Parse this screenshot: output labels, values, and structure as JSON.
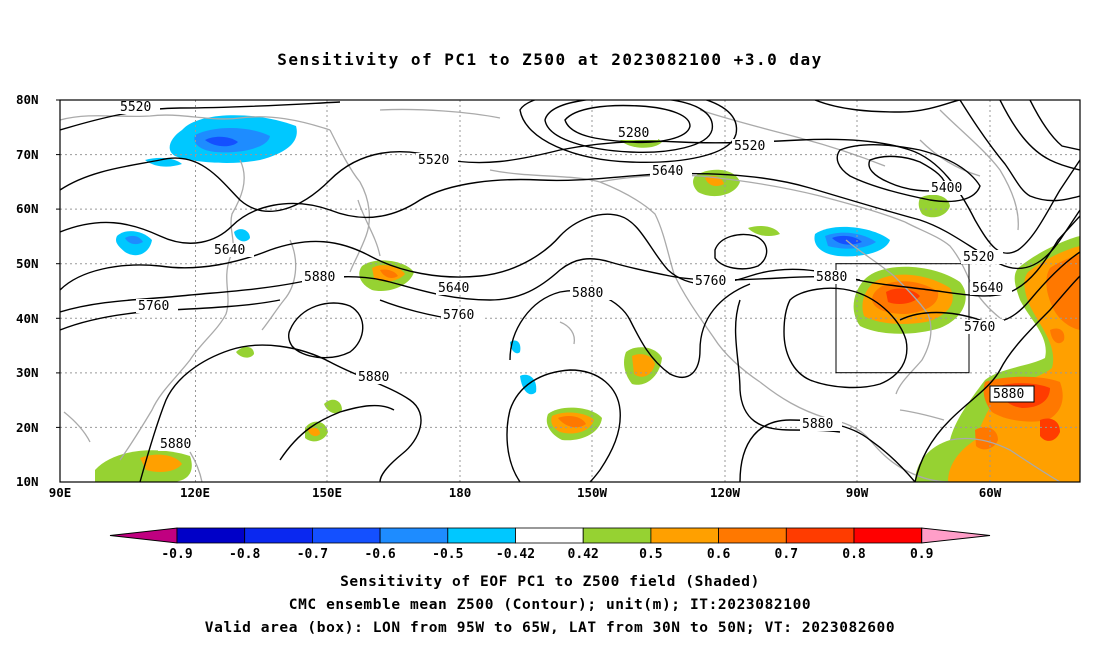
{
  "title": "Sensitivity of PC1 to Z500 at 2023082100 +3.0 day",
  "lat_ticks": [
    "80N",
    "70N",
    "60N",
    "50N",
    "40N",
    "30N",
    "20N",
    "10N"
  ],
  "lon_ticks": [
    "90E",
    "120E",
    "150E",
    "180",
    "150W",
    "120W",
    "90W",
    "60W"
  ],
  "contour_labels": [
    {
      "text": "5520",
      "id": "a"
    },
    {
      "text": "5280",
      "id": "b"
    },
    {
      "text": "5520",
      "id": "c"
    },
    {
      "text": "5520",
      "id": "d"
    },
    {
      "text": "5640",
      "id": "e"
    },
    {
      "text": "5400",
      "id": "f"
    },
    {
      "text": "5640",
      "id": "g"
    },
    {
      "text": "5880",
      "id": "h"
    },
    {
      "text": "5760",
      "id": "i"
    },
    {
      "text": "5640",
      "id": "j"
    },
    {
      "text": "5760",
      "id": "k"
    },
    {
      "text": "5880",
      "id": "l"
    },
    {
      "text": "5760",
      "id": "m"
    },
    {
      "text": "5880",
      "id": "n"
    },
    {
      "text": "5520",
      "id": "o"
    },
    {
      "text": "5640",
      "id": "p"
    },
    {
      "text": "5760",
      "id": "q"
    },
    {
      "text": "5880",
      "id": "r"
    },
    {
      "text": "5880",
      "id": "s"
    },
    {
      "text": "5880",
      "id": "t"
    },
    {
      "text": "5880",
      "id": "u"
    }
  ],
  "colorbar": {
    "labels": [
      "-0.9",
      "-0.8",
      "-0.7",
      "-0.6",
      "-0.5",
      "-0.42",
      "0.42",
      "0.5",
      "0.6",
      "0.7",
      "0.8",
      "0.9"
    ],
    "colors": [
      "#c00080",
      "#0000c8",
      "#0a28f0",
      "#1450ff",
      "#1e8cff",
      "#00c8ff",
      "#ffffff",
      "#96d232",
      "#ffa000",
      "#ff7800",
      "#ff3c00",
      "#ff0000",
      "#ff9ec8"
    ]
  },
  "caption": {
    "line1": "Sensitivity of EOF PC1 to Z500 field (Shaded)",
    "line2": "CMC ensemble mean Z500 (Contour); unit(m); IT:2023082100",
    "line3": "Valid area (box): LON from 95W to 65W, LAT from 30N to 50N; VT: 2023082600"
  }
}
